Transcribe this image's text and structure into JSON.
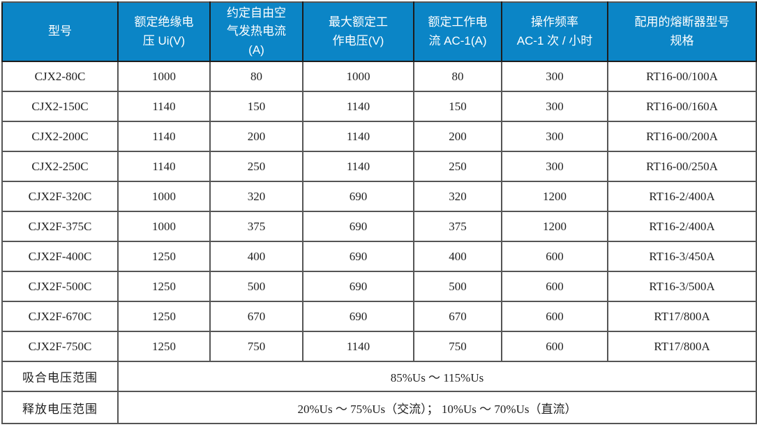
{
  "colors": {
    "header_bg": "#0b85c6",
    "header_text": "#ffffff",
    "grid_border": "#555555",
    "header_divider": "#1d1d1d",
    "body_text": "#1f1f1f",
    "row_bg": "#ffffff"
  },
  "table": {
    "columns": [
      {
        "key": "model",
        "label_lines": [
          "型号"
        ]
      },
      {
        "key": "rated-insulation-voltage",
        "label_lines": [
          "额定绝缘电",
          "压 Ui(V)"
        ]
      },
      {
        "key": "conventional-free-air-thermal-current",
        "label_lines": [
          "约定自由空",
          "气发热电流",
          "(A)"
        ]
      },
      {
        "key": "max-rated-working-voltage",
        "label_lines": [
          "最大额定工",
          "作电压(V)"
        ]
      },
      {
        "key": "rated-working-current-ac1",
        "label_lines": [
          "额定工作电",
          "流 AC-1(A)"
        ]
      },
      {
        "key": "operating-frequency",
        "label_lines": [
          "操作频率",
          "AC-1 次 / 小时"
        ]
      },
      {
        "key": "matching-fuse-model",
        "label_lines": [
          "配用的熔断器型号",
          "规格"
        ]
      }
    ],
    "rows": [
      [
        "CJX2-80C",
        "1000",
        "80",
        "1000",
        "80",
        "300",
        "RT16-00/100A"
      ],
      [
        "CJX2-150C",
        "1140",
        "150",
        "1140",
        "150",
        "300",
        "RT16-00/160A"
      ],
      [
        "CJX2-200C",
        "1140",
        "200",
        "1140",
        "200",
        "300",
        "RT16-00/200A"
      ],
      [
        "CJX2-250C",
        "1140",
        "250",
        "1140",
        "250",
        "300",
        "RT16-00/250A"
      ],
      [
        "CJX2F-320C",
        "1000",
        "320",
        "690",
        "320",
        "1200",
        "RT16-2/400A"
      ],
      [
        "CJX2F-375C",
        "1000",
        "375",
        "690",
        "375",
        "1200",
        "RT16-2/400A"
      ],
      [
        "CJX2F-400C",
        "1250",
        "400",
        "690",
        "400",
        "600",
        "RT16-3/450A"
      ],
      [
        "CJX2F-500C",
        "1250",
        "500",
        "690",
        "500",
        "600",
        "RT16-3/500A"
      ],
      [
        "CJX2F-670C",
        "1250",
        "670",
        "690",
        "670",
        "600",
        "RT17/800A"
      ],
      [
        "CJX2F-750C",
        "1250",
        "750",
        "1140",
        "750",
        "600",
        "RT17/800A"
      ]
    ],
    "footer_rows": [
      {
        "label": "吸合电压范围",
        "value": "85%Us ～ 115%Us"
      },
      {
        "label": "释放电压范围",
        "value": "20%Us ～ 75%Us（交流）； 10%Us ～ 70%Us（直流）"
      }
    ]
  }
}
